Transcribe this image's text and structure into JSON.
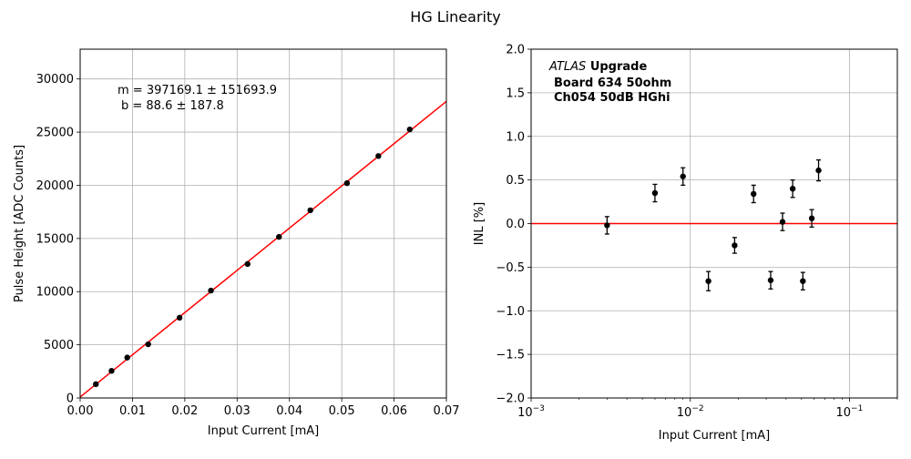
{
  "figure": {
    "title": "HG Linearity"
  },
  "chart_data": [
    {
      "type": "scatter",
      "xlabel": "Input Current [mA]",
      "ylabel": "Pulse Height [ADC Counts]",
      "xlim": [
        0,
        0.07
      ],
      "ylim": [
        0,
        32800
      ],
      "xticks": [
        0,
        0.01,
        0.02,
        0.03,
        0.04,
        0.05,
        0.06,
        0.07
      ],
      "xtick_labels": [
        "0.00",
        "0.01",
        "0.02",
        "0.03",
        "0.04",
        "0.05",
        "0.06",
        "0.07"
      ],
      "yticks": [
        0,
        5000,
        10000,
        15000,
        20000,
        25000,
        30000
      ],
      "ytick_labels": [
        "0",
        "5000",
        "10000",
        "15000",
        "20000",
        "25000",
        "30000"
      ],
      "grid": true,
      "annotation_lines": [
        "m = 397169.1 ± 151693.9",
        "b = 88.6 ± 187.8"
      ],
      "fit": {
        "slope": 397169.1,
        "intercept": 88.6,
        "color": "#ff0000"
      },
      "points": {
        "color": "#000000",
        "x": [
          0.003,
          0.006,
          0.009,
          0.013,
          0.019,
          0.025,
          0.032,
          0.038,
          0.044,
          0.051,
          0.057,
          0.063
        ],
        "y": [
          1300,
          2550,
          3800,
          5050,
          7550,
          10100,
          12600,
          15150,
          17650,
          20200,
          22750,
          25250
        ]
      }
    },
    {
      "type": "scatter",
      "xlabel": "Input Current [mA]",
      "ylabel": "INL [%]",
      "xscale": "log",
      "xlim": [
        0.001,
        0.2
      ],
      "ylim": [
        -2.0,
        2.0
      ],
      "xticks": [
        0.001,
        0.01,
        0.1
      ],
      "xtick_labels": [
        {
          "base": "10",
          "exp": "−3"
        },
        {
          "base": "10",
          "exp": "−2"
        },
        {
          "base": "10",
          "exp": "−1"
        }
      ],
      "yticks": [
        -2.0,
        -1.5,
        -1.0,
        -0.5,
        0.0,
        0.5,
        1.0,
        1.5,
        2.0
      ],
      "ytick_labels": [
        "−2.0",
        "−1.5",
        "−1.0",
        "−0.5",
        "0.0",
        "0.5",
        "1.0",
        "1.5",
        "2.0"
      ],
      "grid": true,
      "reference_line": {
        "y": 0.0,
        "color": "#ff0000"
      },
      "label_block": {
        "atlas": "ATLAS",
        "upgrade": "Upgrade",
        "line2": "Board 634 50ohm",
        "line3": "Ch054 50dB HGhi"
      },
      "points": {
        "color": "#000000",
        "x": [
          0.003,
          0.006,
          0.009,
          0.013,
          0.019,
          0.025,
          0.032,
          0.038,
          0.044,
          0.051,
          0.058,
          0.064
        ],
        "y": [
          -0.02,
          0.35,
          0.54,
          -0.66,
          -0.25,
          0.34,
          -0.65,
          0.02,
          0.4,
          -0.66,
          0.06,
          0.61
        ],
        "err": [
          0.1,
          0.1,
          0.1,
          0.11,
          0.09,
          0.1,
          0.1,
          0.1,
          0.1,
          0.1,
          0.1,
          0.12
        ]
      }
    }
  ]
}
